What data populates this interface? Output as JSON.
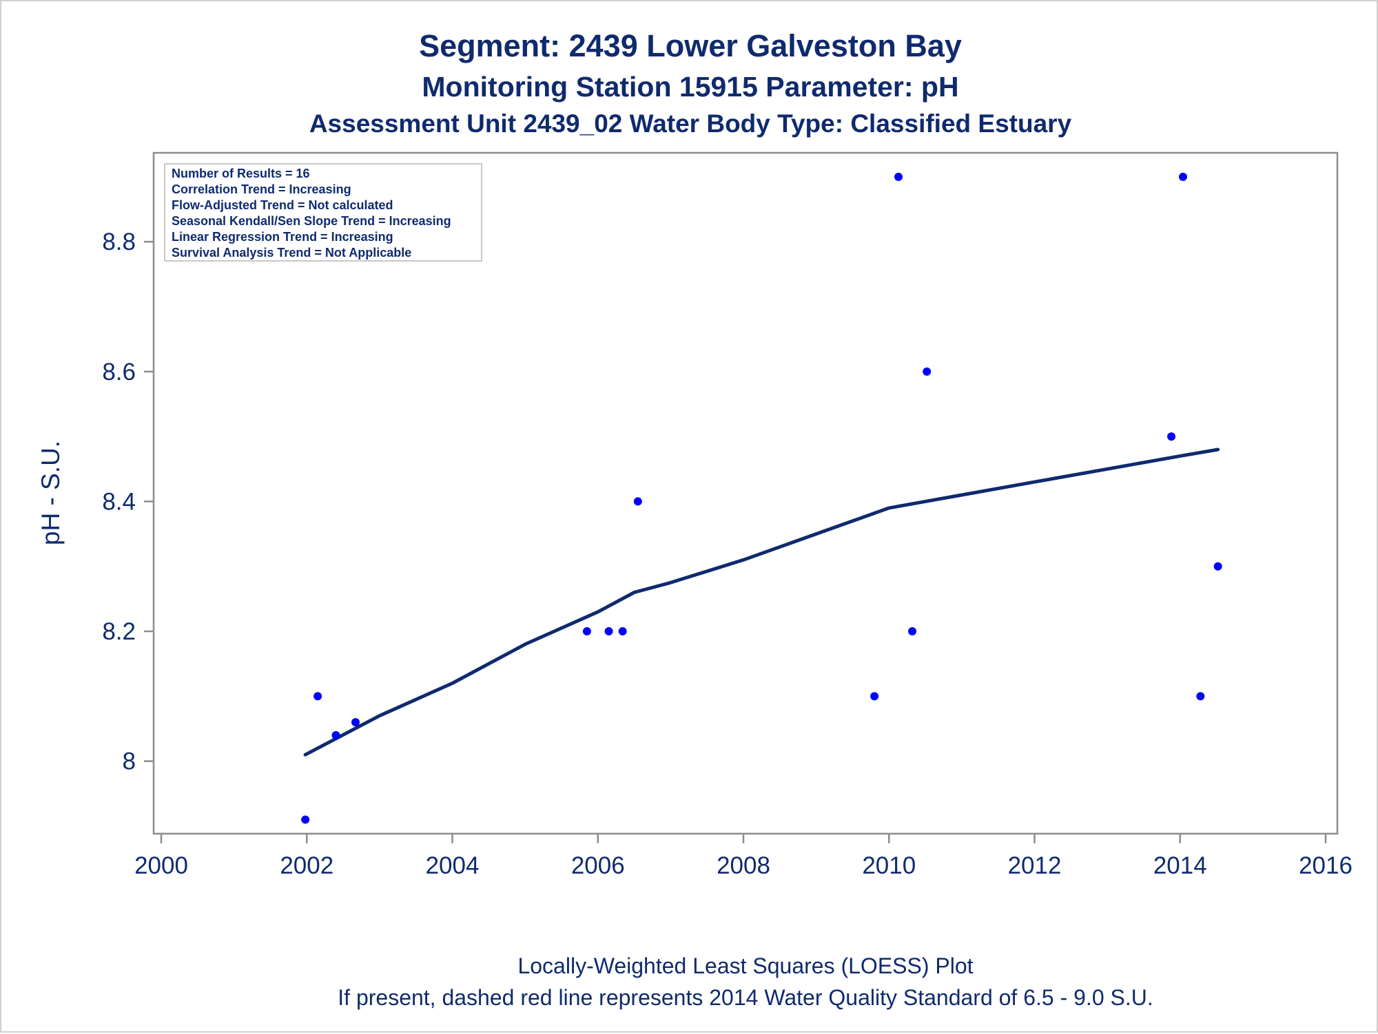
{
  "chart_data": {
    "type": "scatter",
    "title": "Segment: 2439  Lower Galveston Bay",
    "subtitle": "Monitoring Station 15915 Parameter: pH",
    "subtitle2": "Assessment Unit 2439_02   Water Body Type: Classified Estuary",
    "xlabel": "",
    "ylabel": "pH - S.U.",
    "xlim": [
      2000,
      2016
    ],
    "ylim": [
      7.9,
      8.92
    ],
    "x_ticks": [
      "2000",
      "2002",
      "2004",
      "2006",
      "2008",
      "2010",
      "2012",
      "2014",
      "2016"
    ],
    "y_ticks": [
      "8",
      "8.2",
      "8.4",
      "8.6",
      "8.8"
    ],
    "grid": false,
    "point_color": "#0000ff",
    "line_color": "#0f2a6e",
    "points": [
      {
        "x": 2001.98,
        "y": 7.91
      },
      {
        "x": 2002.15,
        "y": 8.1
      },
      {
        "x": 2002.4,
        "y": 8.04
      },
      {
        "x": 2002.67,
        "y": 8.06
      },
      {
        "x": 2005.85,
        "y": 8.2
      },
      {
        "x": 2006.15,
        "y": 8.2
      },
      {
        "x": 2006.34,
        "y": 8.2
      },
      {
        "x": 2006.55,
        "y": 8.4
      },
      {
        "x": 2009.8,
        "y": 8.1
      },
      {
        "x": 2010.13,
        "y": 8.9
      },
      {
        "x": 2010.32,
        "y": 8.2
      },
      {
        "x": 2010.52,
        "y": 8.6
      },
      {
        "x": 2013.88,
        "y": 8.5
      },
      {
        "x": 2014.04,
        "y": 8.9
      },
      {
        "x": 2014.28,
        "y": 8.1
      },
      {
        "x": 2014.52,
        "y": 8.3
      }
    ],
    "loess": [
      {
        "x": 2001.98,
        "y": 8.01
      },
      {
        "x": 2003.0,
        "y": 8.07
      },
      {
        "x": 2004.0,
        "y": 8.12
      },
      {
        "x": 2005.0,
        "y": 8.18
      },
      {
        "x": 2006.0,
        "y": 8.23
      },
      {
        "x": 2006.5,
        "y": 8.26
      },
      {
        "x": 2007.0,
        "y": 8.275
      },
      {
        "x": 2008.0,
        "y": 8.31
      },
      {
        "x": 2009.0,
        "y": 8.35
      },
      {
        "x": 2010.0,
        "y": 8.39
      },
      {
        "x": 2010.5,
        "y": 8.4
      },
      {
        "x": 2011.0,
        "y": 8.41
      },
      {
        "x": 2012.0,
        "y": 8.43
      },
      {
        "x": 2013.0,
        "y": 8.45
      },
      {
        "x": 2014.0,
        "y": 8.47
      },
      {
        "x": 2014.52,
        "y": 8.48
      }
    ],
    "legend": {
      "placement": "top-left",
      "entries": [
        "Number of Results = 16",
        "Correlation Trend = Increasing",
        "Flow-Adjusted Trend = Not calculated",
        "Seasonal Kendall/Sen Slope Trend = Increasing",
        "Linear Regression Trend = Increasing",
        "Survival Analysis Trend = Not Applicable"
      ]
    },
    "footnotes": [
      "Locally-Weighted Least Squares (LOESS) Plot",
      "If present, dashed red line represents 2014 Water Quality Standard of 6.5 - 9.0 S.U."
    ]
  }
}
